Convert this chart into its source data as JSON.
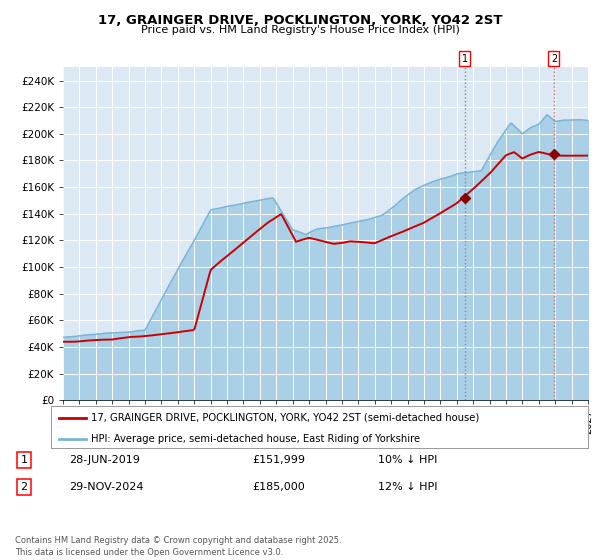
{
  "title1": "17, GRAINGER DRIVE, POCKLINGTON, YORK, YO42 2ST",
  "title2": "Price paid vs. HM Land Registry's House Price Index (HPI)",
  "bg_color": "#dce9f5",
  "plot_bg": "#dce9f5",
  "hpi_color": "#7ab5d8",
  "hpi_fill_color": "#aad0e8",
  "price_color": "#cc0000",
  "marker_color": "#8b0000",
  "vline1_color": "#888888",
  "vline2_color": "#cc6666",
  "ylim": [
    0,
    250000
  ],
  "ytick_vals": [
    0,
    20000,
    40000,
    60000,
    80000,
    100000,
    120000,
    140000,
    160000,
    180000,
    200000,
    220000,
    240000
  ],
  "ytick_labels": [
    "£0",
    "£20K",
    "£40K",
    "£60K",
    "£80K",
    "£100K",
    "£120K",
    "£140K",
    "£160K",
    "£180K",
    "£200K",
    "£220K",
    "£240K"
  ],
  "xlim": [
    1995,
    2027
  ],
  "sale1_x": 2019.5,
  "sale1_y": 151999,
  "sale2_x": 2024.92,
  "sale2_y": 185000,
  "legend_price": "17, GRAINGER DRIVE, POCKLINGTON, YORK, YO42 2ST (semi-detached house)",
  "legend_hpi": "HPI: Average price, semi-detached house, East Riding of Yorkshire",
  "ann1_label": "1",
  "ann1_date": "28-JUN-2019",
  "ann1_price": "£151,999",
  "ann1_hpi": "10% ↓ HPI",
  "ann2_label": "2",
  "ann2_date": "29-NOV-2024",
  "ann2_price": "£185,000",
  "ann2_hpi": "12% ↓ HPI",
  "footer": "Contains HM Land Registry data © Crown copyright and database right 2025.\nThis data is licensed under the Open Government Licence v3.0."
}
